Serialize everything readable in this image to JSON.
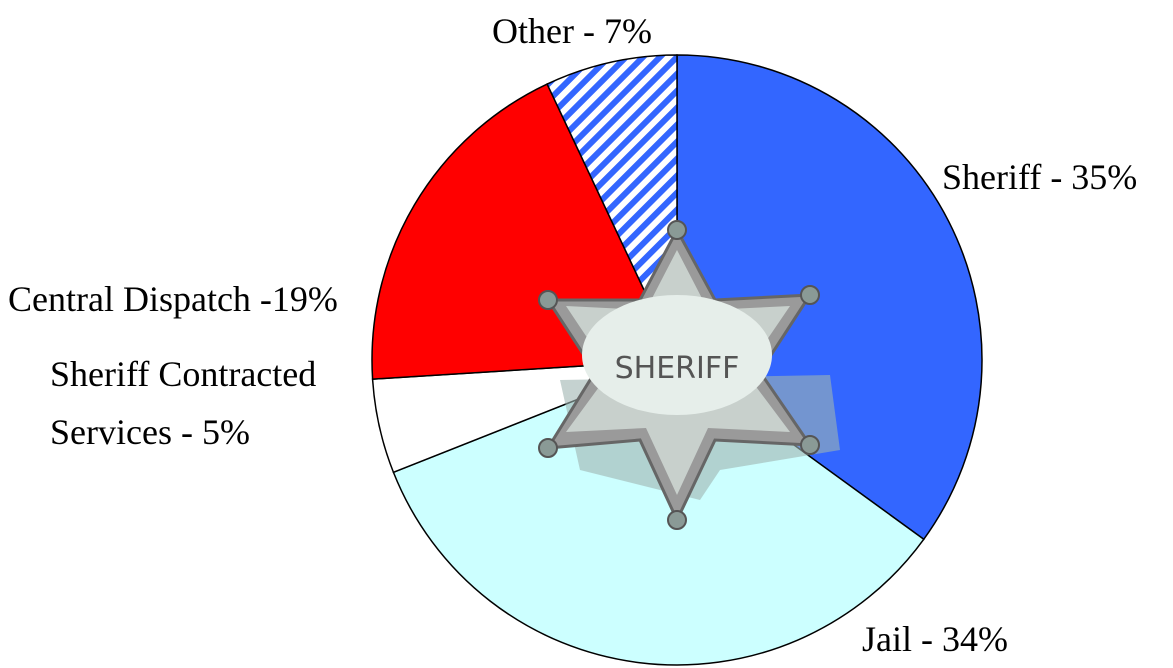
{
  "chart_data": {
    "type": "pie",
    "values": [
      35,
      34,
      5,
      19,
      7
    ],
    "value_labels": [
      "Sheriff - 35%",
      "Jail - 34%",
      "Sheriff Contracted Services - 5%",
      "Central Dispatch -19%",
      "Other - 7%"
    ],
    "colors": [
      "#3366ff",
      "#ccffff",
      "#ffffff",
      "#ff0000",
      "#3366ff"
    ],
    "hatch": [
      false,
      false,
      false,
      false,
      true
    ],
    "badge_text": "SHERIFF"
  }
}
